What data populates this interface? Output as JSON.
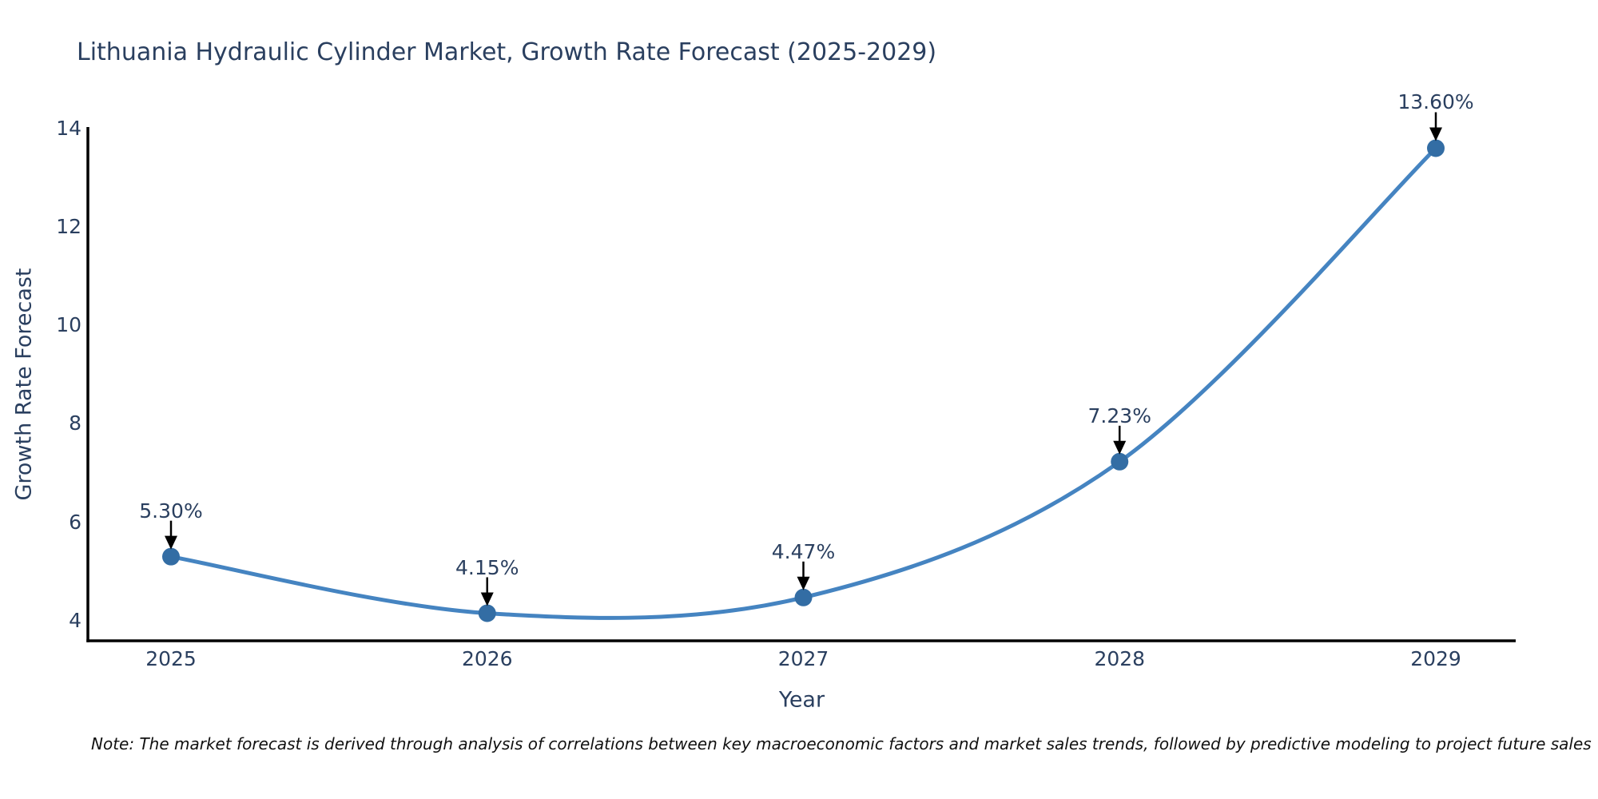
{
  "title": "Lithuania Hydraulic Cylinder Market, Growth Rate Forecast (2025-2029)",
  "note": "Note: The market forecast is derived through analysis of correlations between key macroeconomic factors and market sales trends, followed by predictive modeling to project future sales",
  "colors": {
    "title_text": "#2a3f5f",
    "axis_line": "#000000",
    "line": "#4584c1",
    "marker": "#336da4",
    "arrow": "#000000",
    "background": "#ffffff"
  },
  "chart_data": {
    "type": "line",
    "title": "Lithuania Hydraulic Cylinder Market, Growth Rate Forecast (2025-2029)",
    "x": [
      2025,
      2026,
      2027,
      2028,
      2029
    ],
    "values": [
      5.3,
      4.15,
      4.47,
      7.23,
      13.6
    ],
    "point_labels": [
      "5.30%",
      "4.15%",
      "4.47%",
      "7.23%",
      "13.60%"
    ],
    "xlabel": "Year",
    "ylabel": "Growth Rate Forecast",
    "yticks": [
      4,
      6,
      8,
      10,
      12,
      14
    ],
    "ylim": [
      3.59,
      14.03
    ],
    "line_shape": "spline",
    "grid": false,
    "legend": "none",
    "markers": true,
    "annotation_arrows": true
  }
}
